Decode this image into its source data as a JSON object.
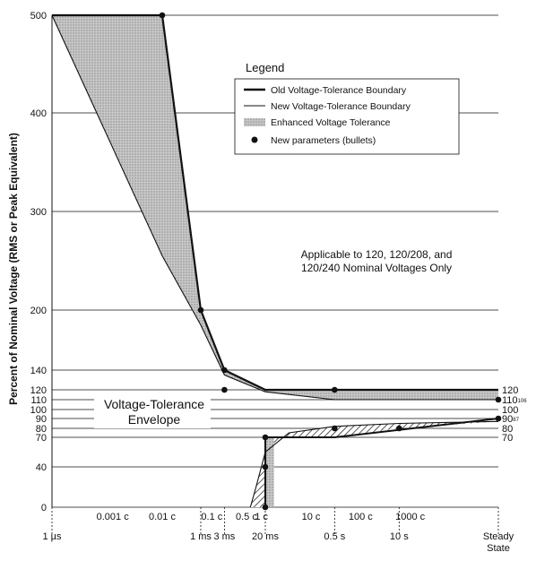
{
  "chart_data": {
    "type": "area",
    "title": "",
    "ylabel": "Percent of Nominal Voltage (RMS or Peak Equivalent)",
    "xlabel": "",
    "x_scale": "log",
    "x_range_s": [
      1e-06,
      1000
    ],
    "ylim": [
      0,
      500
    ],
    "grid": true,
    "y_tick_labels": [
      {
        "label": "500",
        "value": 500
      },
      {
        "label": "400",
        "value": 400
      },
      {
        "label": "300",
        "value": 300
      },
      {
        "label": "200",
        "value": 200
      },
      {
        "label": "140",
        "value": 140
      },
      {
        "label": "120",
        "value": 120
      },
      {
        "label": "110",
        "value": 110
      },
      {
        "label": "100",
        "value": 100
      },
      {
        "label": "90",
        "value": 90
      },
      {
        "label": "80",
        "value": 80
      },
      {
        "label": "70",
        "value": 70
      },
      {
        "label": "40",
        "value": 40
      },
      {
        "label": "0",
        "value": 0
      }
    ],
    "right_tick_labels": [
      {
        "label": "120",
        "value": 120
      },
      {
        "label": "110",
        "value": 110,
        "superscript": "106"
      },
      {
        "label": "100",
        "value": 100
      },
      {
        "label": "90",
        "value": 90,
        "superscript": "87"
      },
      {
        "label": "80",
        "value": 80
      },
      {
        "label": "70",
        "value": 70
      }
    ],
    "x_bottom_labels": [
      {
        "label": "1 µs",
        "x": 1e-06
      },
      {
        "label": "1 ms",
        "x": 0.001
      },
      {
        "label": "3 ms",
        "x": 0.003
      },
      {
        "label": "20 ms",
        "x": 0.02
      },
      {
        "label": "0.5 s",
        "x": 0.5
      },
      {
        "label": "10 s",
        "x": 10
      },
      {
        "label": "Steady",
        "x": 1000
      },
      {
        "label": "State",
        "x": 1000
      }
    ],
    "x_cycle_labels": [
      {
        "label": "0.001 c",
        "x": 1.67e-05
      },
      {
        "label": "0.01 c",
        "x": 0.000167
      },
      {
        "label": "0.1 c",
        "x": 0.00167
      },
      {
        "label": "0.5 c",
        "x": 0.00833
      },
      {
        "label": "1 c",
        "x": 0.0167
      },
      {
        "label": "10 c",
        "x": 0.167
      },
      {
        "label": "100 c",
        "x": 1.67
      },
      {
        "label": "1000 c",
        "x": 16.7
      }
    ],
    "series": [
      {
        "name": "Old Voltage-Tolerance Boundary",
        "color": "#111111",
        "points_x": [
          1e-06,
          0.000167,
          0.001,
          0.003,
          0.02,
          0.5,
          1000
        ],
        "points_y": [
          500,
          500,
          200,
          140,
          120,
          120,
          120
        ]
      },
      {
        "name": "New Voltage-Tolerance Boundary",
        "color": "#111111",
        "points_x": [
          1e-06,
          0.000167,
          0.001,
          0.003,
          0.02,
          0.5,
          1000
        ],
        "points_y": [
          500,
          255,
          185,
          135,
          118,
          110,
          110
        ]
      }
    ],
    "legend": {
      "title": "Legend",
      "entries": [
        {
          "label": "Old Voltage-Tolerance Boundary",
          "kind": "line-thick"
        },
        {
          "label": "New Voltage-Tolerance Boundary",
          "kind": "line-thin"
        },
        {
          "label": "Enhanced Voltage Tolerance",
          "kind": "area"
        },
        {
          "label": "New parameters (bullets)",
          "kind": "bullet"
        }
      ],
      "position": "top-right"
    },
    "annotations": {
      "applicable_line1": "Applicable to 120, 120/208, and",
      "applicable_line2": "120/240 Nominal Voltages Only",
      "envelope_line1": "Voltage-Tolerance",
      "envelope_line2": "Envelope"
    },
    "bullets": [
      {
        "x": 0.000167,
        "y": 500
      },
      {
        "x": 0.001,
        "y": 200
      },
      {
        "x": 0.003,
        "y": 140
      },
      {
        "x": 0.003,
        "y": 120
      },
      {
        "x": 0.02,
        "y": 70
      },
      {
        "x": 0.02,
        "y": 40
      },
      {
        "x": 0.02,
        "y": 0
      },
      {
        "x": 0.5,
        "y": 120
      },
      {
        "x": 0.5,
        "y": 80
      },
      {
        "x": 10,
        "y": 80
      },
      {
        "x": 1000,
        "y": 110
      },
      {
        "x": 1000,
        "y": 90
      }
    ],
    "lower_old_boundary": {
      "points_x": [
        0.02,
        0.5,
        1000
      ],
      "points_y": [
        70,
        70,
        90
      ]
    }
  }
}
